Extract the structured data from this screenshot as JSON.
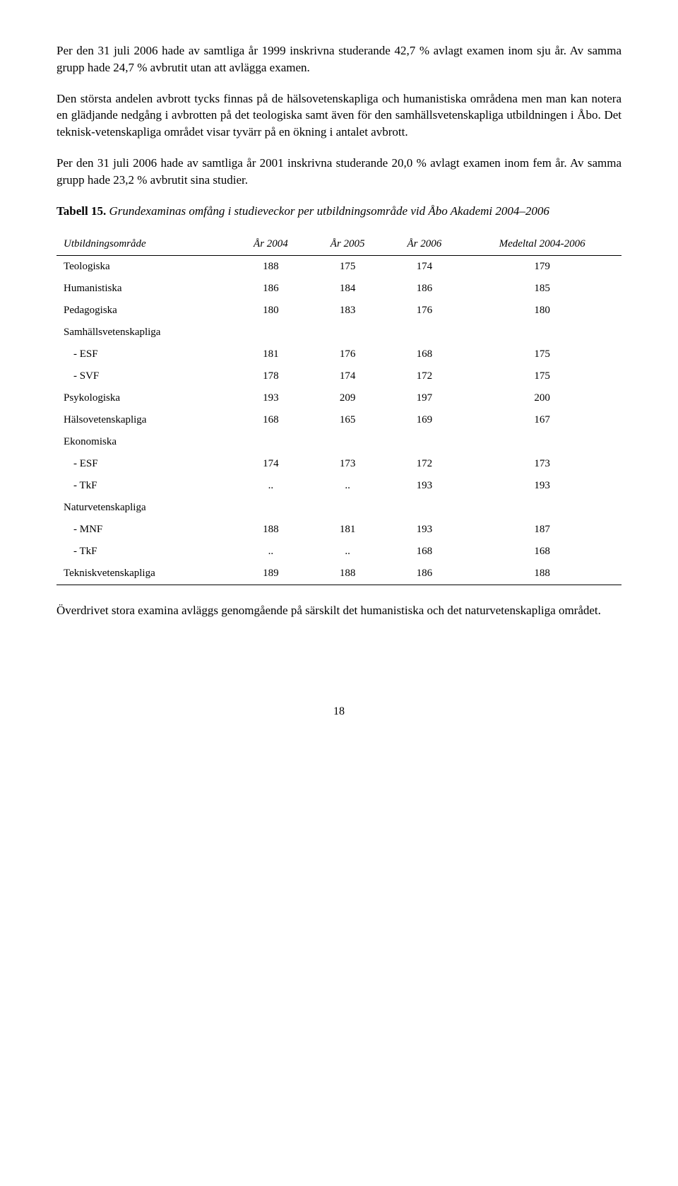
{
  "paragraphs": {
    "p1": "Per den 31 juli 2006 hade av samtliga år 1999 inskrivna studerande 42,7 % avlagt examen inom sju år. Av samma grupp hade 24,7 % avbrutit utan att avlägga examen.",
    "p2": "Den största andelen avbrott tycks finnas på de hälsovetenskapliga och humanistiska områdena men man kan notera en glädjande nedgång i avbrotten på det teologiska samt även för den samhällsvetenskapliga utbildningen i Åbo. Det teknisk-vetenskapliga området visar tyvärr på en ökning i antalet avbrott.",
    "p3": "Per den 31 juli 2006 hade av samtliga år 2001 inskrivna studerande 20,0 % avlagt examen inom fem år. Av samma grupp hade 23,2 % avbrutit sina studier.",
    "caption_label": "Tabell 15.",
    "caption_desc": "Grundexaminas omfång i studieveckor per utbildningsområde vid Åbo Akademi 2004–2006",
    "p_after": "Överdrivet stora examina avläggs genomgående på särskilt det humanistiska och det naturvetenskapliga området."
  },
  "table": {
    "headers": [
      "Utbildningsområde",
      "År 2004",
      "År 2005",
      "År 2006",
      "Medeltal 2004-2006"
    ],
    "rows": [
      {
        "label": "Teologiska",
        "indent": false,
        "cells": [
          "188",
          "175",
          "174",
          "179"
        ]
      },
      {
        "label": "Humanistiska",
        "indent": false,
        "cells": [
          "186",
          "184",
          "186",
          "185"
        ]
      },
      {
        "label": "Pedagogiska",
        "indent": false,
        "cells": [
          "180",
          "183",
          "176",
          "180"
        ]
      },
      {
        "label": "Samhällsvetenskapliga",
        "indent": false,
        "cells": [
          "",
          "",
          "",
          ""
        ]
      },
      {
        "label": "- ESF",
        "indent": true,
        "cells": [
          "181",
          "176",
          "168",
          "175"
        ]
      },
      {
        "label": "- SVF",
        "indent": true,
        "cells": [
          "178",
          "174",
          "172",
          "175"
        ]
      },
      {
        "label": "Psykologiska",
        "indent": false,
        "cells": [
          "193",
          "209",
          "197",
          "200"
        ]
      },
      {
        "label": "Hälsovetenskapliga",
        "indent": false,
        "cells": [
          "168",
          "165",
          "169",
          "167"
        ]
      },
      {
        "label": "Ekonomiska",
        "indent": false,
        "cells": [
          "",
          "",
          "",
          ""
        ]
      },
      {
        "label": "- ESF",
        "indent": true,
        "cells": [
          "174",
          "173",
          "172",
          "173"
        ]
      },
      {
        "label": "- TkF",
        "indent": true,
        "cells": [
          "..",
          "..",
          "193",
          "193"
        ]
      },
      {
        "label": "Naturvetenskapliga",
        "indent": false,
        "cells": [
          "",
          "",
          "",
          ""
        ]
      },
      {
        "label": "- MNF",
        "indent": true,
        "cells": [
          "188",
          "181",
          "193",
          "187"
        ]
      },
      {
        "label": "- TkF",
        "indent": true,
        "cells": [
          "..",
          "..",
          "168",
          "168"
        ]
      },
      {
        "label": "Tekniskvetenskapliga",
        "indent": false,
        "cells": [
          "189",
          "188",
          "186",
          "188"
        ]
      }
    ]
  },
  "page_number": "18"
}
